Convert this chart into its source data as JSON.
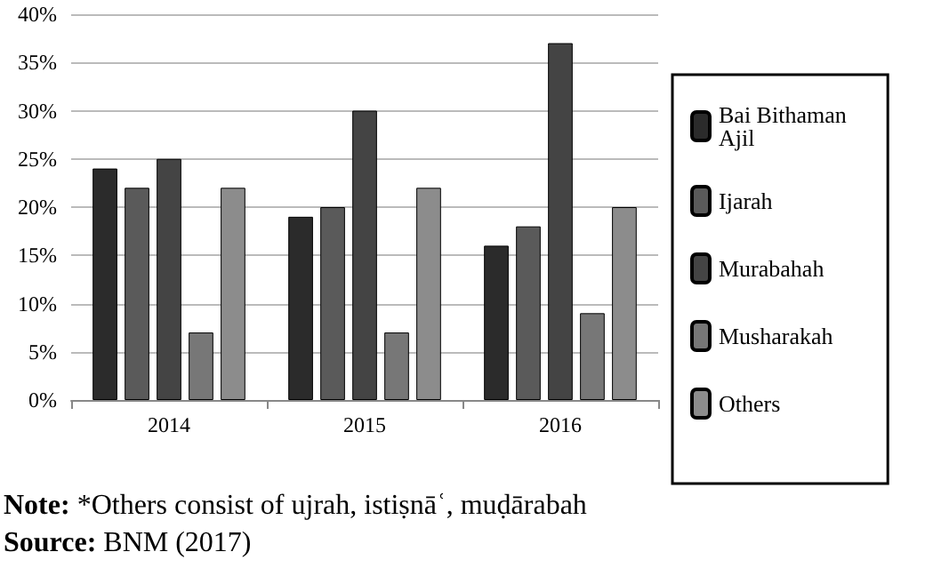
{
  "chart_data": {
    "type": "bar",
    "categories": [
      "2014",
      "2015",
      "2016"
    ],
    "series": [
      {
        "name": "Bai Bithaman Ajil",
        "color": "#2b2b2b",
        "values": [
          24,
          19,
          16
        ]
      },
      {
        "name": "Ijarah",
        "color": "#5a5a5a",
        "values": [
          22,
          20,
          18
        ]
      },
      {
        "name": "Murabahah",
        "color": "#444444",
        "values": [
          25,
          30,
          37
        ]
      },
      {
        "name": "Musharakah",
        "color": "#777777",
        "values": [
          7,
          7,
          9
        ]
      },
      {
        "name": "Others",
        "color": "#8c8c8c",
        "values": [
          22,
          22,
          20
        ]
      }
    ],
    "ylim": [
      0,
      40
    ],
    "yticks": [
      {
        "value": 0,
        "label": "0%"
      },
      {
        "value": 5,
        "label": "5%"
      },
      {
        "value": 10,
        "label": "10%"
      },
      {
        "value": 15,
        "label": "15%"
      },
      {
        "value": 20,
        "label": "20%"
      },
      {
        "value": 25,
        "label": "25%"
      },
      {
        "value": 30,
        "label": "30%"
      },
      {
        "value": 35,
        "label": "35%"
      },
      {
        "value": 40,
        "label": "40%"
      }
    ],
    "grid": "y",
    "legend": "right",
    "annotations": [
      "Note: *Others consist of ujrah, istiṣnāʿ, muḍārabah",
      "Source: BNM (2017)"
    ]
  }
}
